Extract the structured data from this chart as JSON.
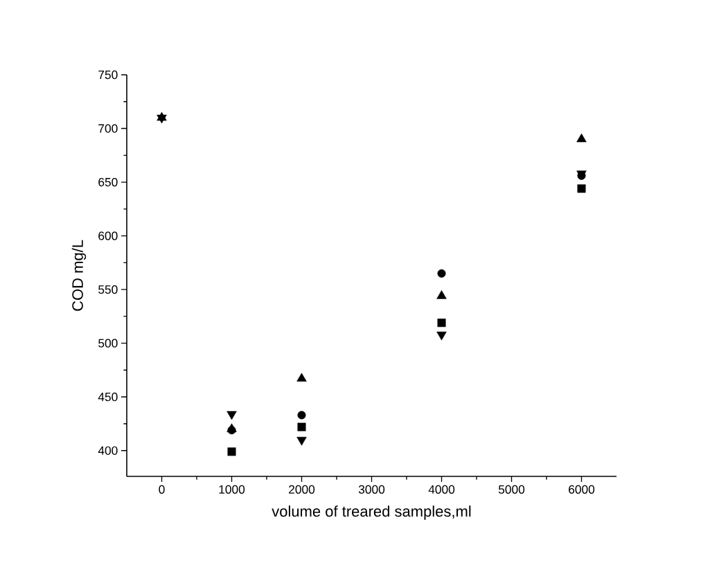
{
  "chart_data": {
    "type": "scatter",
    "xlabel": "volume of treared samples,ml",
    "ylabel": "COD mg/L",
    "x": [
      0,
      1000,
      2000,
      4000,
      6000
    ],
    "series": [
      {
        "color": "#000000",
        "marker": "square",
        "values": [
          null,
          399,
          422,
          519,
          644
        ]
      },
      {
        "color": "#000000",
        "marker": "circle",
        "values": [
          null,
          419,
          433,
          565,
          656
        ]
      },
      {
        "color": "#000000",
        "marker": "triangle",
        "values": [
          710,
          420,
          467,
          544,
          690
        ]
      },
      {
        "color": "#000000",
        "marker": "triangle-down",
        "values": [
          710,
          434,
          410,
          508,
          658
        ]
      }
    ],
    "xlim": [
      -500,
      6500
    ],
    "ylim": [
      376,
      750
    ],
    "xticks": [
      0,
      1000,
      2000,
      3000,
      4000,
      5000,
      6000
    ],
    "yticks": [
      400,
      450,
      500,
      550,
      600,
      650,
      700,
      750
    ]
  }
}
